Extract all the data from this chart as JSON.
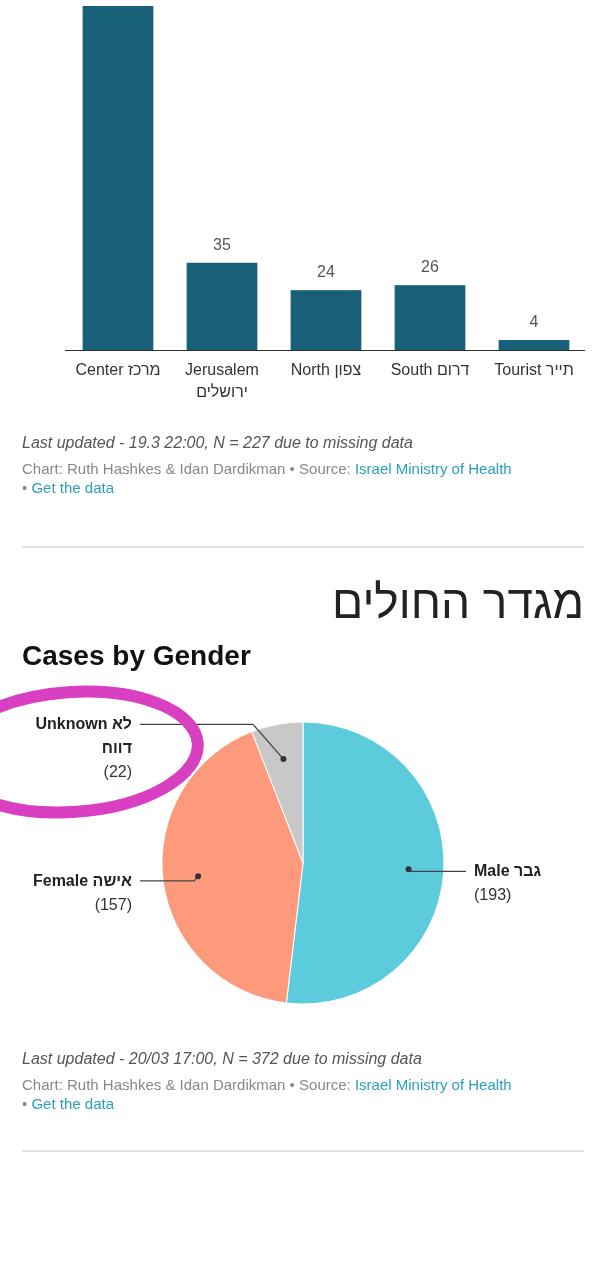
{
  "chart_data": [
    {
      "type": "bar",
      "categories": [
        "Center מרכז",
        "Jerusalem ירושלים",
        "North צפון",
        "South דרום",
        "Tourist תייר"
      ],
      "values": [
        138,
        35,
        24,
        26,
        4
      ],
      "value_labels": [
        null,
        "35",
        "24",
        "26",
        "4"
      ],
      "color": "#185f78",
      "annotations": [
        "Last updated - 19.3 22:00, N = 227 due to missing data",
        "Chart: Ruth Hashkes & Idan Dardikman • Source: Israel Ministry of Health • Get the data"
      ]
    },
    {
      "type": "pie",
      "title": "מגדר החולים",
      "subtitle": "Cases by Gender",
      "categories": [
        "Male גבר",
        "Female אישה",
        "Unknown לא דווח"
      ],
      "values": [
        193,
        157,
        22
      ],
      "value_labels": [
        "(193)",
        "(157)",
        "(22)"
      ],
      "colors": [
        "#5ccbdc",
        "#fd9a7c",
        "#c8c8c8"
      ],
      "annotations": [
        "Last updated - 20/03 17:00, N = 372 due to missing data",
        "Chart: Ruth Hashkes & Idan Dardikman • Source: Israel Ministry of Health • Get the data"
      ]
    }
  ]
}
